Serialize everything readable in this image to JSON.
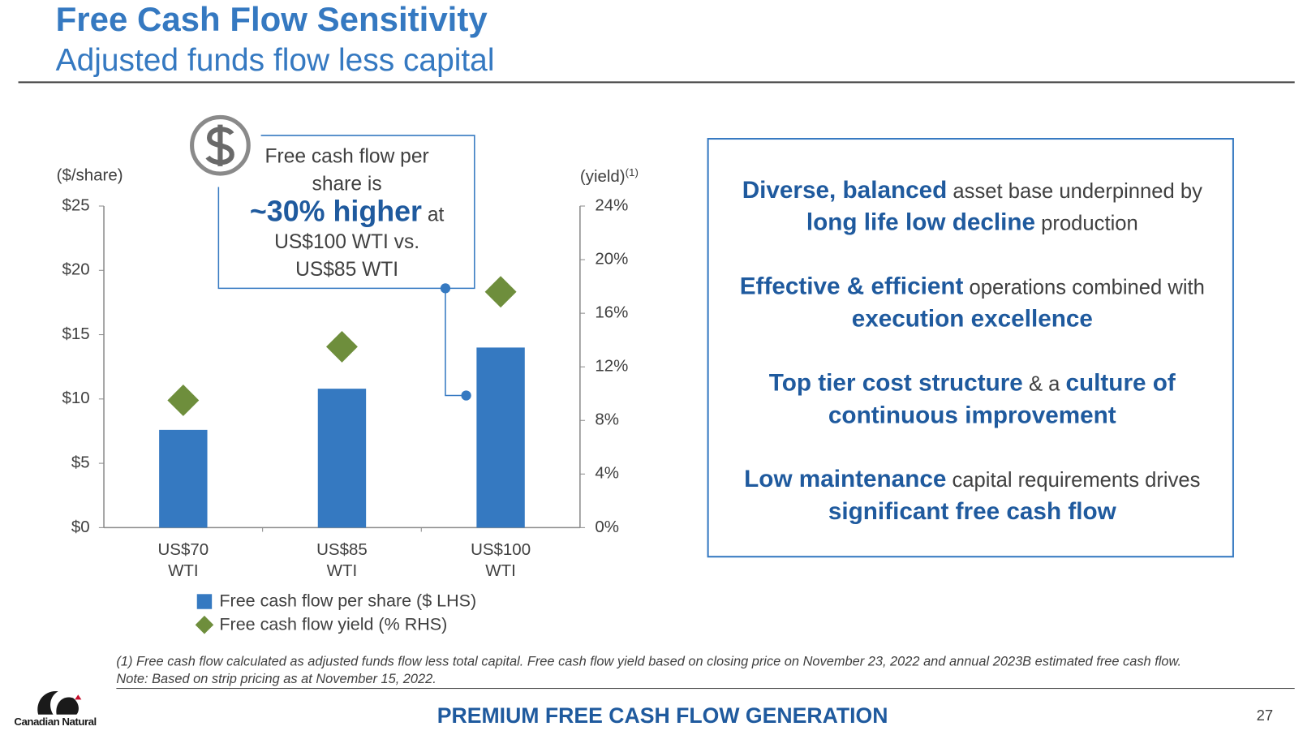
{
  "header": {
    "title": "Free Cash Flow Sensitivity",
    "subtitle": "Adjusted funds flow less capital"
  },
  "chart_data": {
    "type": "bar",
    "y_label": "($/share)",
    "y2_label": "(yield)",
    "y2_label_note": "(1)",
    "categories": [
      "US$70 WTI",
      "US$85 WTI",
      "US$100 WTI"
    ],
    "series": [
      {
        "name": "Free cash flow per share ($ LHS)",
        "type": "bar",
        "color": "#3579c1",
        "values": [
          7.6,
          10.8,
          14.0
        ]
      },
      {
        "name": "Free cash flow yield (% RHS)",
        "type": "scatter",
        "marker": "diamond",
        "axis": "y2",
        "color": "#6e8e3c",
        "values": [
          9.5,
          13.5,
          17.6
        ]
      }
    ],
    "ylim": [
      0,
      25
    ],
    "yticks": [
      {
        "value": 0,
        "label": "$0"
      },
      {
        "value": 5,
        "label": "$5"
      },
      {
        "value": 10,
        "label": "$10"
      },
      {
        "value": 15,
        "label": "$15"
      },
      {
        "value": 20,
        "label": "$20"
      },
      {
        "value": 25,
        "label": "$25"
      }
    ],
    "y2lim": [
      0,
      24
    ],
    "y2ticks": [
      {
        "value": 0,
        "label": "0%"
      },
      {
        "value": 4,
        "label": "4%"
      },
      {
        "value": 8,
        "label": "8%"
      },
      {
        "value": 12,
        "label": "12%"
      },
      {
        "value": 16,
        "label": "16%"
      },
      {
        "value": 20,
        "label": "20%"
      },
      {
        "value": 24,
        "label": "24%"
      }
    ],
    "grid": false,
    "annotation": {
      "lead": "Free cash flow per share is",
      "highlight": "~30% higher",
      "after": "at",
      "tail": "US$100 WTI vs. US$85 WTI"
    }
  },
  "highlights": [
    [
      {
        "text": "Diverse, balanced",
        "emphasis": true
      },
      {
        "text": "asset base underpinned by",
        "emphasis": false
      },
      {
        "text": "long life low decline",
        "emphasis": true
      },
      {
        "text": "production",
        "emphasis": false
      }
    ],
    [
      {
        "text": "Effective & efficient",
        "emphasis": true
      },
      {
        "text": "operations combined with",
        "emphasis": false
      },
      {
        "text": "execution excellence",
        "emphasis": true
      }
    ],
    [
      {
        "text": "Top tier cost structure",
        "emphasis": true
      },
      {
        "text": "& a",
        "emphasis": false
      },
      {
        "text": "culture of continuous improvement",
        "emphasis": true
      }
    ],
    [
      {
        "text": "Low maintenance",
        "emphasis": true
      },
      {
        "text": "capital requirements drives",
        "emphasis": false
      },
      {
        "text": "significant free cash flow",
        "emphasis": true
      }
    ]
  ],
  "footnotes": [
    "(1) Free cash flow calculated as adjusted funds flow less total capital. Free cash flow yield based on closing price on November 23, 2022 and annual 2023B estimated free cash flow.",
    "Note: Based on strip pricing as at November 15, 2022."
  ],
  "footer": {
    "logo": "Canadian Natural",
    "tagline": "PREMIUM FREE CASH FLOW GENERATION",
    "page": "27"
  }
}
